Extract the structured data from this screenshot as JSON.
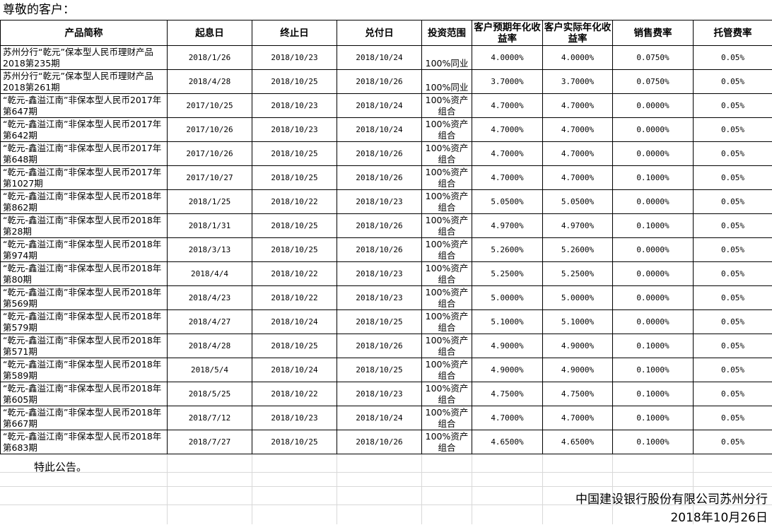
{
  "greeting": "尊敬的客户：",
  "table": {
    "headers": [
      "产品简称",
      "起息日",
      "终止日",
      "兑付日",
      "投资范围",
      "客户预期年化收益率",
      "客户实际年化收益率",
      "销售费率",
      "托管费率"
    ],
    "rows": [
      [
        "苏州分行“乾元”保本型人民币理财产品2018第235期",
        "2018/1/26",
        "2018/10/23",
        "2018/10/24",
        "100%同业",
        "4.0000%",
        "4.0000%",
        "0.0750%",
        "0.05%"
      ],
      [
        "苏州分行“乾元”保本型人民币理财产品2018第261期",
        "2018/4/28",
        "2018/10/25",
        "2018/10/26",
        "100%同业",
        "3.7000%",
        "3.7000%",
        "0.0750%",
        "0.05%"
      ],
      [
        "“乾元-鑫溢江南”非保本型人民币2017年第647期",
        "2017/10/25",
        "2018/10/23",
        "2018/10/24",
        "100%资产组合",
        "4.7000%",
        "4.7000%",
        "0.0000%",
        "0.05%"
      ],
      [
        "“乾元-鑫溢江南”非保本型人民币2017年第642期",
        "2017/10/26",
        "2018/10/23",
        "2018/10/24",
        "100%资产组合",
        "4.7000%",
        "4.7000%",
        "0.0000%",
        "0.05%"
      ],
      [
        "“乾元-鑫溢江南”非保本型人民币2017年第648期",
        "2017/10/26",
        "2018/10/25",
        "2018/10/26",
        "100%资产组合",
        "4.7000%",
        "4.7000%",
        "0.0000%",
        "0.05%"
      ],
      [
        "“乾元-鑫溢江南”非保本型人民币2017年第1027期",
        "2017/10/27",
        "2018/10/25",
        "2018/10/26",
        "100%资产组合",
        "4.7000%",
        "4.7000%",
        "0.1000%",
        "0.05%"
      ],
      [
        "“乾元-鑫溢江南”非保本型人民币2018年第862期",
        "2018/1/25",
        "2018/10/22",
        "2018/10/23",
        "100%资产组合",
        "5.0500%",
        "5.0500%",
        "0.0000%",
        "0.05%"
      ],
      [
        "“乾元-鑫溢江南”非保本型人民币2018年第28期",
        "2018/1/31",
        "2018/10/25",
        "2018/10/26",
        "100%资产组合",
        "4.9700%",
        "4.9700%",
        "0.1000%",
        "0.05%"
      ],
      [
        "“乾元-鑫溢江南”非保本型人民币2018年第974期",
        "2018/3/13",
        "2018/10/25",
        "2018/10/26",
        "100%资产组合",
        "5.2600%",
        "5.2600%",
        "0.0000%",
        "0.05%"
      ],
      [
        "“乾元-鑫溢江南”非保本型人民币2018年第80期",
        "2018/4/4",
        "2018/10/22",
        "2018/10/23",
        "100%资产组合",
        "5.2500%",
        "5.2500%",
        "0.0000%",
        "0.05%"
      ],
      [
        "“乾元-鑫溢江南”非保本型人民币2018年第569期",
        "2018/4/23",
        "2018/10/22",
        "2018/10/23",
        "100%资产组合",
        "5.0000%",
        "5.0000%",
        "0.0000%",
        "0.05%"
      ],
      [
        "“乾元-鑫溢江南”非保本型人民币2018年第579期",
        "2018/4/27",
        "2018/10/24",
        "2018/10/25",
        "100%资产组合",
        "5.1000%",
        "5.1000%",
        "0.0000%",
        "0.05%"
      ],
      [
        "“乾元-鑫溢江南”非保本型人民币2018年第571期",
        "2018/4/28",
        "2018/10/25",
        "2018/10/26",
        "100%资产组合",
        "4.9000%",
        "4.9000%",
        "0.1000%",
        "0.05%"
      ],
      [
        "“乾元-鑫溢江南”非保本型人民币2018年第589期",
        "2018/5/4",
        "2018/10/24",
        "2018/10/25",
        "100%资产组合",
        "4.9000%",
        "4.9000%",
        "0.1000%",
        "0.05%"
      ],
      [
        "“乾元-鑫溢江南”非保本型人民币2018年第605期",
        "2018/5/25",
        "2018/10/22",
        "2018/10/23",
        "100%资产组合",
        "4.7500%",
        "4.7500%",
        "0.1000%",
        "0.05%"
      ],
      [
        "“乾元-鑫溢江南”非保本型人民币2018年第667期",
        "2018/7/12",
        "2018/10/23",
        "2018/10/24",
        "100%资产组合",
        "4.7000%",
        "4.7000%",
        "0.1000%",
        "0.05%"
      ],
      [
        "“乾元-鑫溢江南”非保本型人民币2018年第683期",
        "2018/7/27",
        "2018/10/25",
        "2018/10/26",
        "100%资产组合",
        "4.6500%",
        "4.6500%",
        "0.1000%",
        "0.05%"
      ]
    ]
  },
  "footer": {
    "notice": "特此公告。",
    "bank": "中国建设银行股份有限公司苏州分行",
    "date": "2018年10月26日"
  }
}
